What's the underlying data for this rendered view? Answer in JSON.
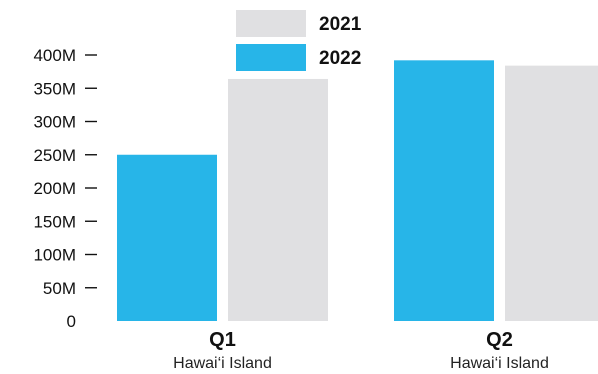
{
  "chart_data": {
    "type": "bar",
    "categories": [
      "Q1",
      "Q2"
    ],
    "category_sublabels": [
      "Hawai‘i Island",
      "Hawai‘i Island"
    ],
    "series": [
      {
        "name": "2022",
        "color": "#27b5e8",
        "values": [
          250,
          392
        ]
      },
      {
        "name": "2021",
        "color": "#e0e0e2",
        "values": [
          364,
          384
        ]
      }
    ],
    "yticks": [
      0,
      50,
      100,
      150,
      200,
      250,
      300,
      350,
      400
    ],
    "ytick_labels": [
      "0",
      "50M",
      "100M",
      "150M",
      "200M",
      "250M",
      "300M",
      "350M",
      "400M"
    ],
    "ylim": [
      0,
      400
    ],
    "legend": [
      {
        "label": "2021",
        "color": "#e0e0e2"
      },
      {
        "label": "2022",
        "color": "#27b5e8"
      }
    ],
    "legend_position": "top-center",
    "grid": false
  }
}
